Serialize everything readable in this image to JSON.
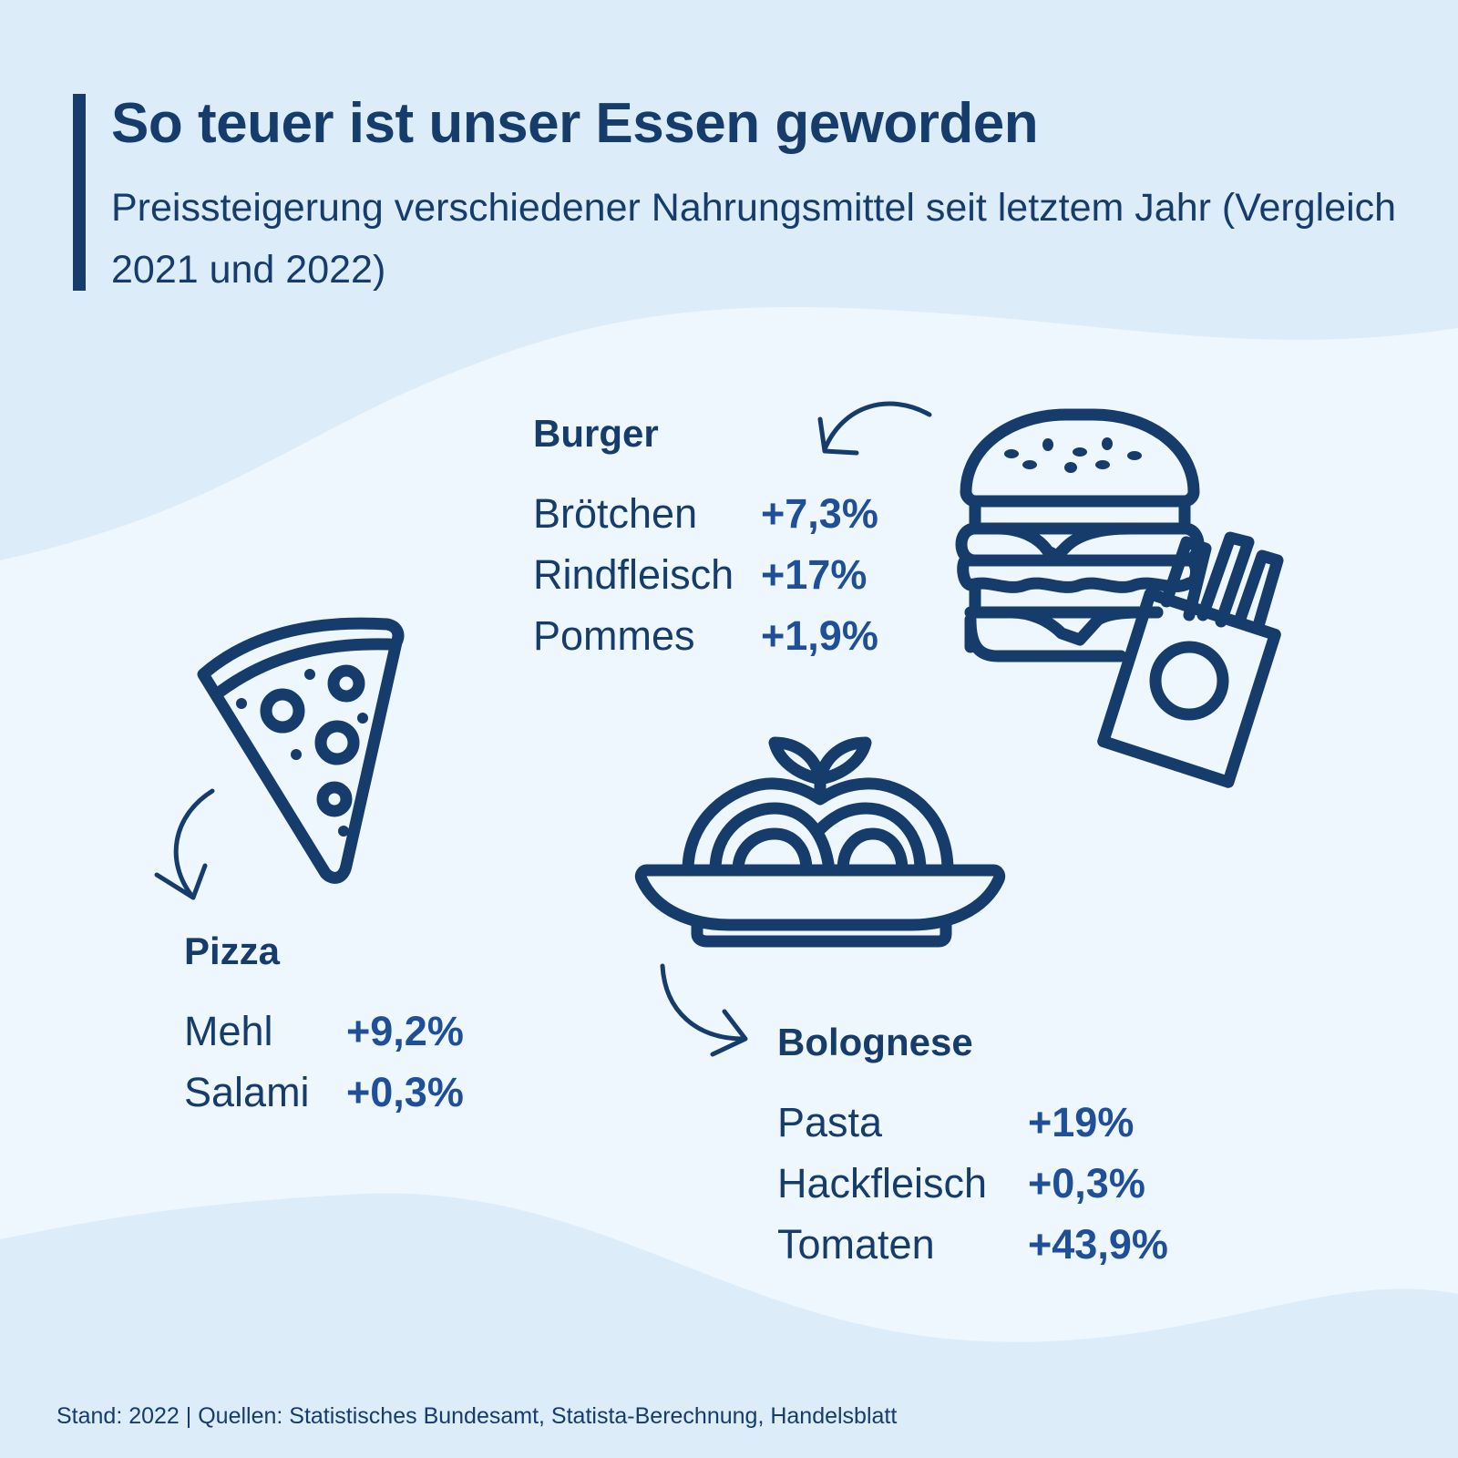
{
  "header": {
    "title": "So teuer ist unser Essen geworden",
    "subtitle": "Preissteigerung verschiedener Nahrungsmittel seit letztem Jahr (Vergleich 2021 und 2022)"
  },
  "groups": {
    "burger": {
      "title": "Burger",
      "icon": "burger-fries-icon",
      "items": [
        {
          "label": "Brötchen",
          "value": "+7,3%"
        },
        {
          "label": "Rindfleisch",
          "value": "+17%"
        },
        {
          "label": "Pommes",
          "value": "+1,9%"
        }
      ]
    },
    "pizza": {
      "title": "Pizza",
      "icon": "pizza-slice-icon",
      "items": [
        {
          "label": "Mehl",
          "value": "+9,2%"
        },
        {
          "label": "Salami",
          "value": "+0,3%"
        }
      ]
    },
    "bolognese": {
      "title": "Bolognese",
      "icon": "pasta-plate-icon",
      "items": [
        {
          "label": "Pasta",
          "value": "+19%"
        },
        {
          "label": "Hackfleisch",
          "value": "+0,3%"
        },
        {
          "label": "Tomaten",
          "value": "+43,9%"
        }
      ]
    }
  },
  "footer": "Stand: 2022 | Quellen: Statistisches Bundesamt, Statista-Berechnung, Handelsblatt",
  "colors": {
    "dark": "#163c6c",
    "accent": "#1f4f98",
    "bg": "#dcecf9",
    "panel": "#eef7fe"
  }
}
